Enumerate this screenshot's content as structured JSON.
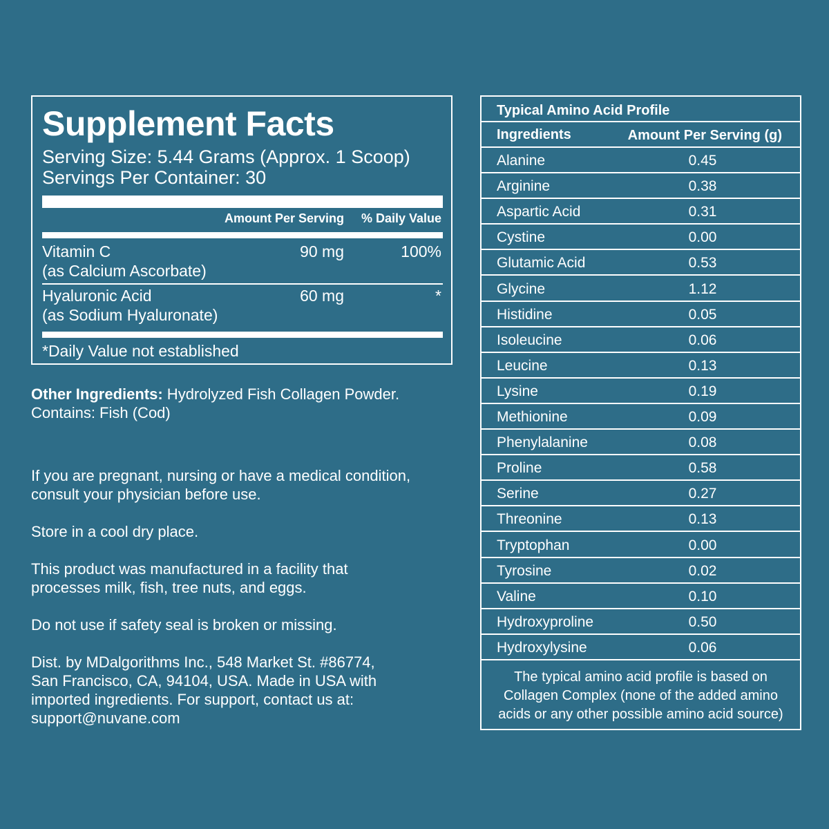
{
  "supplement_facts": {
    "title": "Supplement Facts",
    "serving_size": "Serving Size: 5.44 Grams (Approx. 1 Scoop)",
    "servings_per_container": "Servings Per Container: 30",
    "col_amount": "Amount Per Serving",
    "col_daily_value": "% Daily Value",
    "nutrients": [
      {
        "name": "Vitamin C",
        "form": "(as Calcium Ascorbate)",
        "amount": "90 mg",
        "daily_value": "100%"
      },
      {
        "name": "Hyaluronic Acid",
        "form": "(as Sodium Hyaluronate)",
        "amount": "60 mg",
        "daily_value": "*"
      }
    ],
    "footnote": "*Daily Value not established"
  },
  "other_ingredients": {
    "label": "Other Ingredients:",
    "text": " Hydrolyzed Fish Collagen Powder.",
    "contains": "Contains: Fish (Cod)"
  },
  "warnings": [
    "If you are pregnant, nursing or have a medical condition, consult your physician before use.",
    "Store in a cool dry place.",
    "This product was manufactured in a facility that processes milk, fish, tree nuts, and eggs.",
    "Do not use if safety seal is broken or missing.",
    "Dist. by MDalgorithms Inc., 548 Market St. #86774, San Francisco, CA, 94104, USA. Made in USA with imported ingredients. For support, contact us at: support@nuvane.com"
  ],
  "amino_profile": {
    "title": "Typical Amino Acid Profile",
    "col_ingredients": "Ingredients",
    "col_amount": "Amount Per Serving (g)",
    "rows": [
      {
        "name": "Alanine",
        "value": "0.45"
      },
      {
        "name": "Arginine",
        "value": "0.38"
      },
      {
        "name": "Aspartic Acid",
        "value": "0.31"
      },
      {
        "name": "Cystine",
        "value": "0.00"
      },
      {
        "name": "Glutamic Acid",
        "value": "0.53"
      },
      {
        "name": "Glycine",
        "value": "1.12"
      },
      {
        "name": "Histidine",
        "value": "0.05"
      },
      {
        "name": "Isoleucine",
        "value": "0.06"
      },
      {
        "name": "Leucine",
        "value": "0.13"
      },
      {
        "name": "Lysine",
        "value": "0.19"
      },
      {
        "name": "Methionine",
        "value": "0.09"
      },
      {
        "name": "Phenylalanine",
        "value": "0.08"
      },
      {
        "name": "Proline",
        "value": "0.58"
      },
      {
        "name": "Serine",
        "value": "0.27"
      },
      {
        "name": "Threonine",
        "value": "0.13"
      },
      {
        "name": "Tryptophan",
        "value": "0.00"
      },
      {
        "name": "Tyrosine",
        "value": "0.02"
      },
      {
        "name": "Valine",
        "value": "0.10"
      },
      {
        "name": "Hydroxyproline",
        "value": "0.50"
      },
      {
        "name": "Hydroxylysine",
        "value": "0.06"
      }
    ],
    "note": "The typical amino acid profile is based on Collagen Complex (none of the added amino acids or any other possible amino acid source)"
  }
}
